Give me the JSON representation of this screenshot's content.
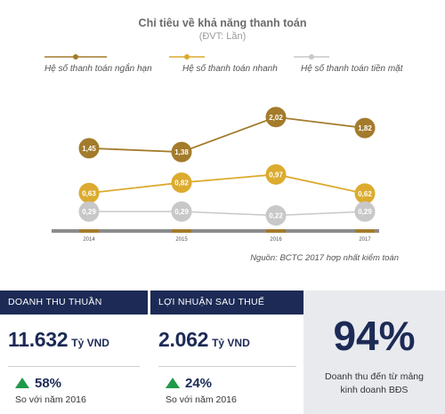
{
  "chart_data": {
    "type": "line",
    "title": "Chỉ tiêu về khả năng thanh toán",
    "subtitle": "(ĐVT: Lần)",
    "x": [
      "2014",
      "2015",
      "2016",
      "2017"
    ],
    "series": [
      {
        "name": "Hệ số thanh toán ngắn hạn",
        "values": [
          1.45,
          1.38,
          2.02,
          1.82
        ],
        "labels": [
          "1,45",
          "1,38",
          "2,02",
          "1,82"
        ],
        "color": "#a37b2b"
      },
      {
        "name": "Hệ số thanh toán nhanh",
        "values": [
          0.63,
          0.82,
          0.97,
          0.62
        ],
        "labels": [
          "0,63",
          "0,82",
          "0,97",
          "0,62"
        ],
        "color": "#dcab2f"
      },
      {
        "name": "Hệ số thanh toán tiền mặt",
        "values": [
          0.29,
          0.29,
          0.22,
          0.29
        ],
        "labels": [
          "0,29",
          "0,29",
          "0,22",
          "0,29"
        ],
        "color": "#c8c8c8"
      }
    ],
    "ylim": [
      0,
      2.4
    ],
    "grid": false,
    "legend": "top",
    "source": "Nguồn: BCTC 2017 hợp nhất kiểm toán"
  },
  "panels": {
    "revenue": {
      "header": "DOANH THU THUẦN",
      "value": "11.632",
      "unit": "Tỷ VND",
      "growth": "58%",
      "compare": "So với năm 2016"
    },
    "profit": {
      "header": "LỢI NHUẬN SAU THUẾ",
      "value": "2.062",
      "unit": "Tỷ VND",
      "growth": "24%",
      "compare": "So với năm 2016"
    },
    "share": {
      "value": "94%",
      "desc_line1": "Doanh thu đến từ mảng",
      "desc_line2": "kinh doanh BĐS"
    }
  },
  "colors": {
    "navy": "#1c2a55",
    "up_arrow": "#1f9a4a",
    "axis": "#8c8c8c",
    "tick_gold": "#a37b2b"
  }
}
